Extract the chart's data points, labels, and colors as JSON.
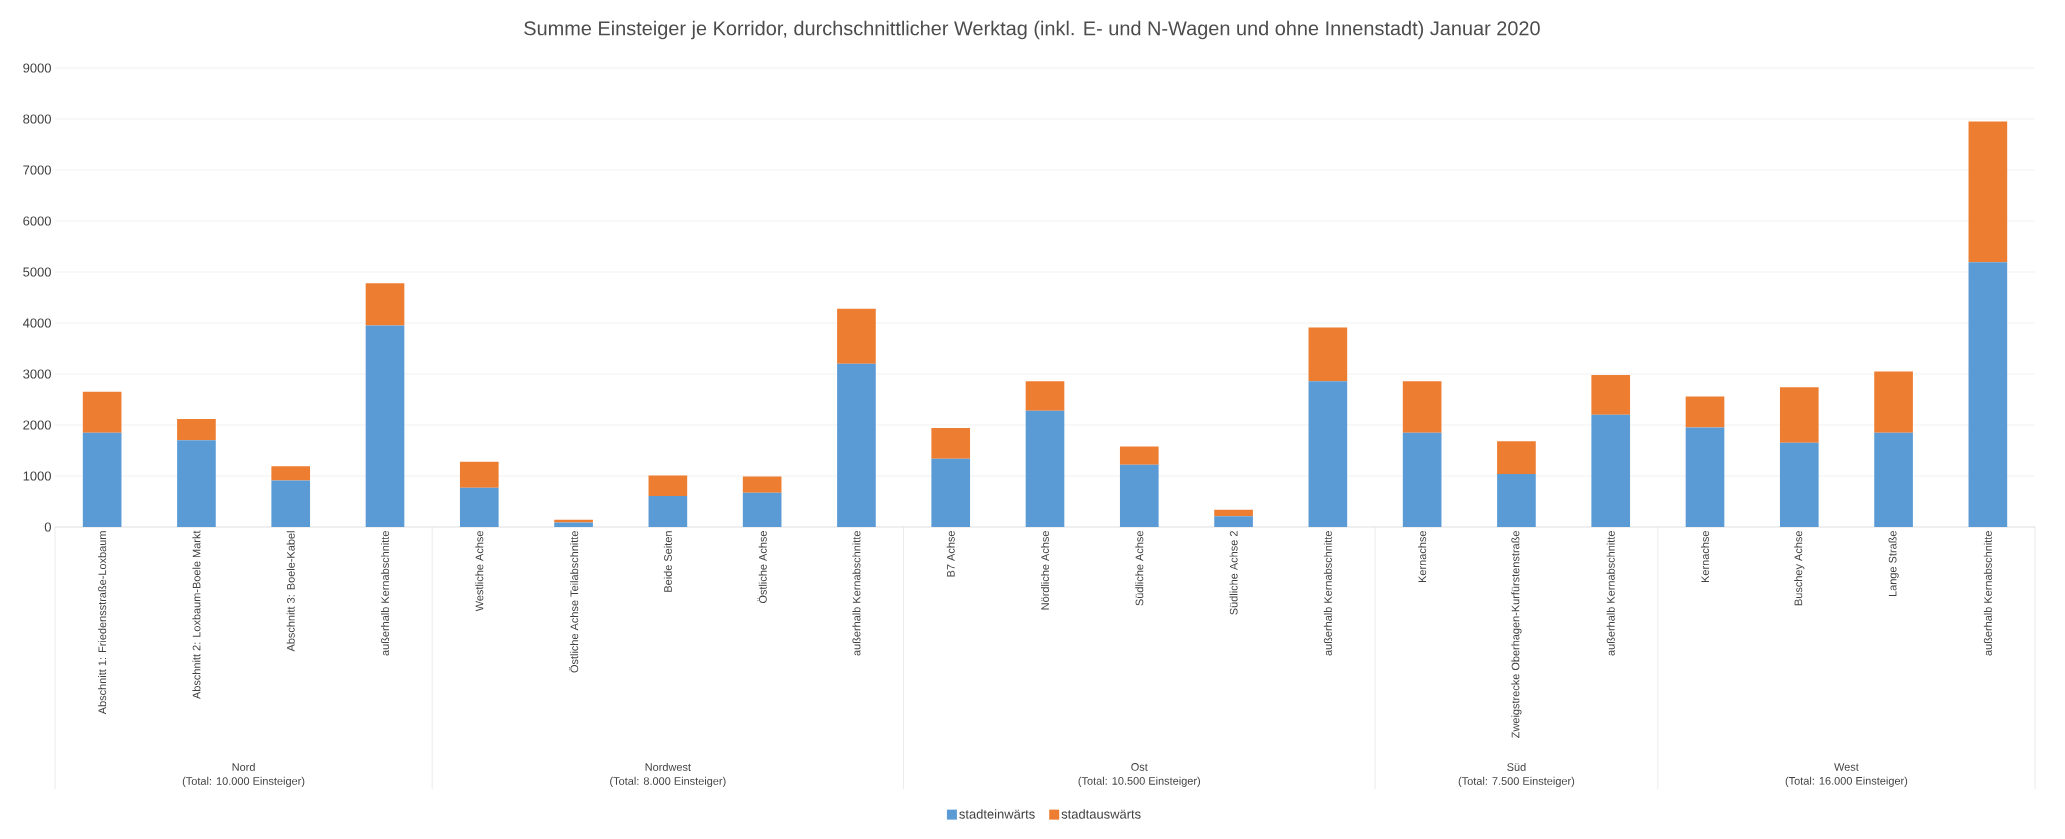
{
  "chart_data": {
    "type": "bar",
    "title": "Summe Einsteiger je Korridor, durchschnittlicher Werktag (inkl. E- und N-Wagen und ohne Innenstadt) Januar 2020",
    "categories": [
      "Abschnitt 1: Friedensstraße-Loxbaum",
      "Abschnitt 2: Loxbaum-Boele Markt",
      "Abschnitt 3: Boele-Kabel",
      "außerhalb Kernabschnitte",
      "Westliche Achse",
      "Östliche Achse Teilabschnitte",
      "Beide Seiten",
      "Östliche Achse",
      "außerhalb Kernabschnitte",
      "B7 Achse",
      "Nördliche Achse",
      "Südliche Achse",
      "Südliche Achse 2",
      "außerhalb Kernabschnitte",
      "Kernachse",
      "Zweigstrecke Oberhagen-Kurfürstenstraße",
      "außerhalb Kernabschnitte",
      "Kernachse",
      "Buschey Achse",
      "Lange Straße",
      "außerhalb Kernabschnitte"
    ],
    "series": [
      {
        "name": "stadteinwärts",
        "color": "#5b9bd5",
        "values": [
          1850,
          1700,
          910,
          3950,
          770,
          90,
          610,
          670,
          3200,
          1340,
          2280,
          1220,
          210,
          2860,
          1850,
          1040,
          2200,
          1950,
          1650,
          1850,
          5190
        ]
      },
      {
        "name": "stadtauswärts",
        "color": "#ed7d31",
        "values": [
          800,
          420,
          280,
          830,
          510,
          50,
          400,
          320,
          1080,
          600,
          580,
          360,
          130,
          1050,
          1010,
          640,
          780,
          610,
          1090,
          1200,
          2760
        ]
      }
    ],
    "stacked": true,
    "ylim": [
      0,
      9000
    ],
    "yticks": [
      0,
      1000,
      2000,
      3000,
      4000,
      5000,
      6000,
      7000,
      8000,
      9000
    ],
    "grid": "y",
    "legend": "bottom",
    "annotations": [
      "Nord",
      "(Total: 10.000 Einsteiger)",
      "Nordwest",
      "(Total: 8.000 Einsteiger)",
      "Ost",
      "(Total: 10.500 Einsteiger)",
      "Süd",
      "(Total: 7.500 Einsteiger)",
      "West",
      "(Total: 16.000 Einsteiger)"
    ]
  }
}
